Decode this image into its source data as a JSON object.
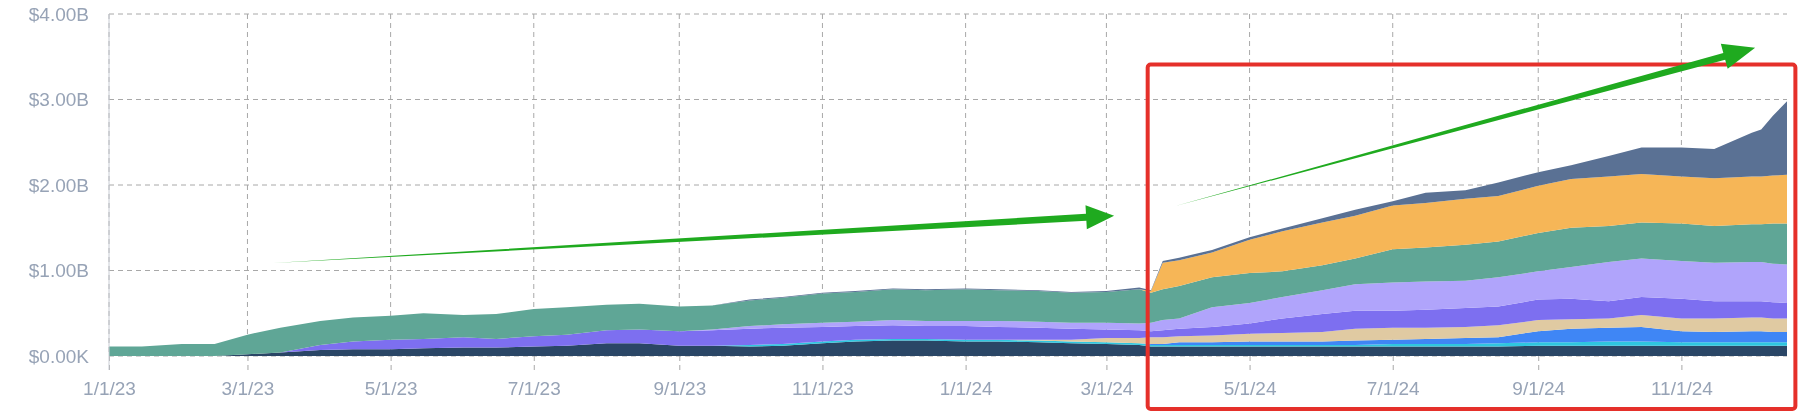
{
  "chart_data": {
    "type": "area",
    "stacked": true,
    "grid": true,
    "x": [
      "2023-01-01",
      "2023-01-15",
      "2023-02-01",
      "2023-02-15",
      "2023-03-01",
      "2023-03-15",
      "2023-04-01",
      "2023-04-15",
      "2023-05-01",
      "2023-05-15",
      "2023-06-01",
      "2023-06-15",
      "2023-07-01",
      "2023-07-15",
      "2023-08-01",
      "2023-08-15",
      "2023-09-01",
      "2023-09-15",
      "2023-10-01",
      "2023-10-15",
      "2023-11-01",
      "2023-11-15",
      "2023-12-01",
      "2023-12-15",
      "2024-01-01",
      "2024-01-15",
      "2024-02-01",
      "2024-02-15",
      "2024-03-01",
      "2024-03-15",
      "2024-03-20",
      "2024-03-25",
      "2024-04-01",
      "2024-04-15",
      "2024-05-01",
      "2024-05-15",
      "2024-06-01",
      "2024-06-15",
      "2024-07-01",
      "2024-07-15",
      "2024-08-01",
      "2024-08-15",
      "2024-09-01",
      "2024-09-15",
      "2024-10-01",
      "2024-10-15",
      "2024-11-01",
      "2024-11-15",
      "2024-12-01",
      "2024-12-05",
      "2024-12-10",
      "2024-12-16"
    ],
    "xlim": [
      "2023-01-01",
      "2024-12-16"
    ],
    "xticks": [
      {
        "value": "2023-01-01",
        "label": "1/1/23"
      },
      {
        "value": "2023-03-01",
        "label": "3/1/23"
      },
      {
        "value": "2023-05-01",
        "label": "5/1/23"
      },
      {
        "value": "2023-07-01",
        "label": "7/1/23"
      },
      {
        "value": "2023-09-01",
        "label": "9/1/23"
      },
      {
        "value": "2023-11-01",
        "label": "11/1/23"
      },
      {
        "value": "2024-01-01",
        "label": "1/1/24"
      },
      {
        "value": "2024-03-01",
        "label": "3/1/24"
      },
      {
        "value": "2024-05-01",
        "label": "5/1/24"
      },
      {
        "value": "2024-07-01",
        "label": "7/1/24"
      },
      {
        "value": "2024-09-01",
        "label": "9/1/24"
      },
      {
        "value": "2024-11-01",
        "label": "11/1/24"
      }
    ],
    "ylim": [
      0,
      4
    ],
    "yticks": [
      {
        "value": 0,
        "label": "$0.00K"
      },
      {
        "value": 1,
        "label": "$1.00B"
      },
      {
        "value": 2,
        "label": "$2.00B"
      },
      {
        "value": 3,
        "label": "$3.00B"
      },
      {
        "value": 4,
        "label": "$4.00B"
      }
    ],
    "series": [
      {
        "color": "#2a4666",
        "values": [
          0,
          0,
          0,
          0,
          0.02,
          0.04,
          0.07,
          0.08,
          0.08,
          0.09,
          0.1,
          0.1,
          0.11,
          0.12,
          0.15,
          0.15,
          0.12,
          0.12,
          0.11,
          0.12,
          0.15,
          0.17,
          0.18,
          0.18,
          0.17,
          0.17,
          0.16,
          0.15,
          0.14,
          0.13,
          0.11,
          0.11,
          0.11,
          0.11,
          0.11,
          0.11,
          0.11,
          0.11,
          0.11,
          0.11,
          0.11,
          0.11,
          0.12,
          0.12,
          0.12,
          0.12,
          0.12,
          0.12,
          0.12,
          0.12,
          0.12,
          0.12
        ]
      },
      {
        "color": "#2fc6df",
        "values": [
          0,
          0,
          0,
          0,
          0,
          0,
          0,
          0,
          0,
          0,
          0,
          0,
          0,
          0,
          0,
          0,
          0,
          0,
          0.02,
          0.02,
          0.02,
          0.02,
          0.02,
          0.02,
          0.02,
          0.02,
          0.02,
          0.02,
          0.02,
          0.02,
          0.02,
          0.02,
          0.02,
          0.02,
          0.02,
          0.02,
          0.02,
          0.02,
          0.03,
          0.03,
          0.03,
          0.04,
          0.04,
          0.04,
          0.05,
          0.05,
          0.04,
          0.04,
          0.04,
          0.04,
          0.04,
          0.04
        ]
      },
      {
        "color": "#3f86f5",
        "values": [
          0,
          0,
          0,
          0,
          0,
          0,
          0,
          0,
          0,
          0,
          0,
          0,
          0,
          0,
          0,
          0,
          0,
          0,
          0,
          0,
          0,
          0,
          0,
          0,
          0,
          0,
          0,
          0,
          0,
          0,
          0.01,
          0.01,
          0.03,
          0.03,
          0.04,
          0.04,
          0.04,
          0.05,
          0.05,
          0.06,
          0.07,
          0.07,
          0.13,
          0.16,
          0.16,
          0.17,
          0.13,
          0.12,
          0.13,
          0.13,
          0.12,
          0.12
        ]
      },
      {
        "color": "#e0caa2",
        "values": [
          0,
          0,
          0,
          0,
          0,
          0,
          0,
          0,
          0,
          0,
          0,
          0,
          0,
          0,
          0,
          0,
          0,
          0,
          0,
          0,
          0,
          0,
          0,
          0,
          0,
          0,
          0.01,
          0.02,
          0.05,
          0.06,
          0.08,
          0.08,
          0.07,
          0.08,
          0.09,
          0.1,
          0.11,
          0.14,
          0.14,
          0.13,
          0.13,
          0.14,
          0.13,
          0.11,
          0.11,
          0.14,
          0.15,
          0.16,
          0.16,
          0.16,
          0.16,
          0.16
        ]
      },
      {
        "color": "#7d6ff0",
        "values": [
          0,
          0,
          0,
          0,
          0,
          0,
          0.06,
          0.09,
          0.11,
          0.11,
          0.12,
          0.1,
          0.12,
          0.13,
          0.15,
          0.16,
          0.17,
          0.18,
          0.19,
          0.19,
          0.17,
          0.16,
          0.16,
          0.15,
          0.16,
          0.15,
          0.14,
          0.13,
          0.1,
          0.09,
          0.07,
          0.08,
          0.09,
          0.1,
          0.12,
          0.17,
          0.21,
          0.21,
          0.2,
          0.21,
          0.22,
          0.22,
          0.24,
          0.24,
          0.2,
          0.21,
          0.23,
          0.2,
          0.19,
          0.19,
          0.19,
          0.18
        ]
      },
      {
        "color": "#b0a4fb",
        "values": [
          0,
          0,
          0,
          0,
          0,
          0,
          0,
          0,
          0,
          0,
          0,
          0,
          0,
          0,
          0,
          0,
          0,
          0.01,
          0.03,
          0.04,
          0.05,
          0.05,
          0.06,
          0.06,
          0.06,
          0.07,
          0.07,
          0.07,
          0.08,
          0.08,
          0.1,
          0.12,
          0.12,
          0.23,
          0.24,
          0.25,
          0.28,
          0.31,
          0.33,
          0.33,
          0.32,
          0.34,
          0.33,
          0.37,
          0.46,
          0.45,
          0.44,
          0.45,
          0.46,
          0.46,
          0.45,
          0.45
        ]
      },
      {
        "color": "#5fa696",
        "values": [
          0.11,
          0.11,
          0.14,
          0.14,
          0.23,
          0.29,
          0.28,
          0.28,
          0.28,
          0.3,
          0.26,
          0.29,
          0.32,
          0.32,
          0.3,
          0.3,
          0.29,
          0.28,
          0.3,
          0.31,
          0.34,
          0.35,
          0.36,
          0.36,
          0.37,
          0.36,
          0.36,
          0.35,
          0.36,
          0.4,
          0.35,
          0.36,
          0.38,
          0.35,
          0.35,
          0.3,
          0.29,
          0.3,
          0.39,
          0.4,
          0.42,
          0.42,
          0.45,
          0.46,
          0.42,
          0.42,
          0.44,
          0.43,
          0.44,
          0.44,
          0.47,
          0.48
        ]
      },
      {
        "color": "#f6b657",
        "values": [
          0,
          0,
          0,
          0,
          0,
          0,
          0,
          0,
          0,
          0,
          0,
          0,
          0,
          0,
          0,
          0,
          0,
          0,
          0,
          0,
          0,
          0,
          0,
          0,
          0,
          0,
          0,
          0,
          0,
          0,
          0.02,
          0.31,
          0.3,
          0.29,
          0.39,
          0.47,
          0.5,
          0.5,
          0.51,
          0.52,
          0.54,
          0.53,
          0.55,
          0.57,
          0.58,
          0.57,
          0.55,
          0.56,
          0.56,
          0.56,
          0.56,
          0.57
        ]
      },
      {
        "color": "#5a7194",
        "values": [
          0,
          0,
          0,
          0,
          0,
          0,
          0,
          0,
          0,
          0,
          0,
          0,
          0,
          0,
          0,
          0,
          0,
          0,
          0.01,
          0.01,
          0.01,
          0.01,
          0.01,
          0.01,
          0.01,
          0.01,
          0.01,
          0.01,
          0.01,
          0.02,
          0.01,
          0.02,
          0.03,
          0.03,
          0.03,
          0.03,
          0.05,
          0.07,
          0.05,
          0.12,
          0.1,
          0.16,
          0.16,
          0.16,
          0.24,
          0.31,
          0.34,
          0.34,
          0.51,
          0.55,
          0.7,
          0.86
        ]
      }
    ]
  }
}
